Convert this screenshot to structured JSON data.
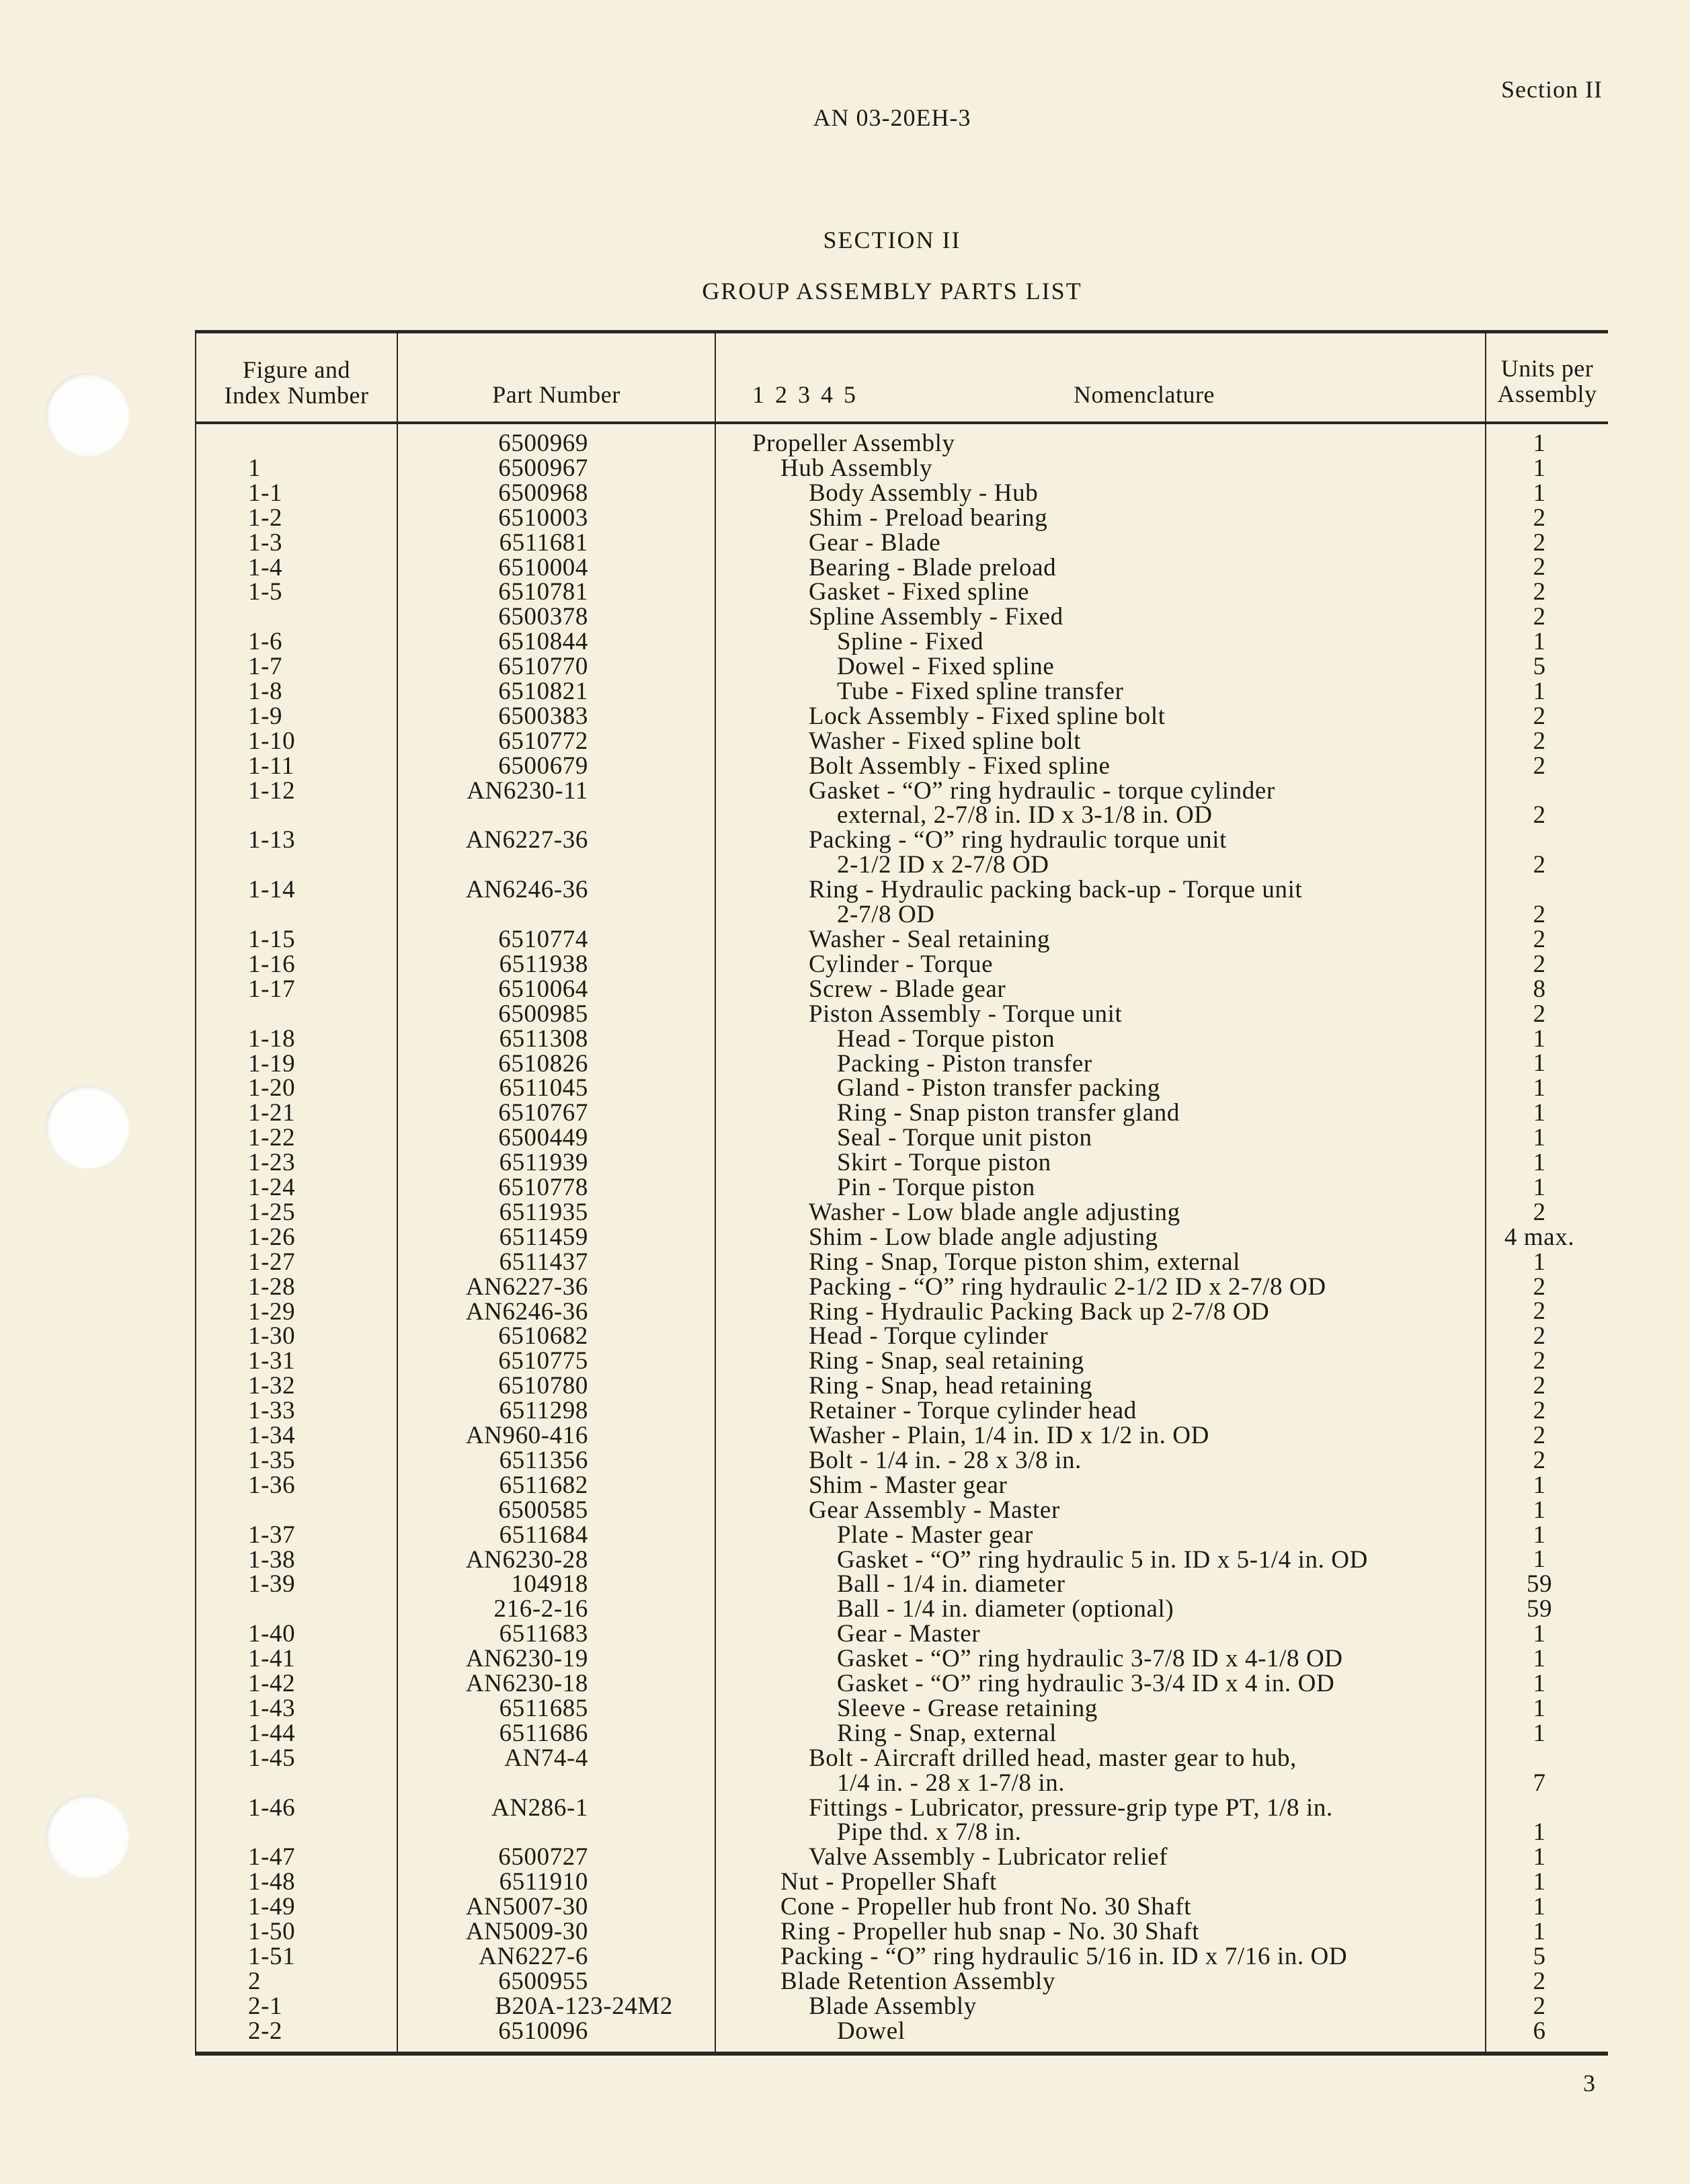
{
  "header": {
    "doc_number": "AN 03-20EH-3",
    "section_tag": "Section II"
  },
  "title": {
    "section": "SECTION II",
    "heading": "GROUP ASSEMBLY PARTS LIST"
  },
  "columns": {
    "figure_line1": "Figure and",
    "figure_line2": "Index Number",
    "part": "Part Number",
    "levels": "1 2 3 4 5",
    "nomenclature": "Nomenclature",
    "units_line1": "Units per",
    "units_line2": "Assembly"
  },
  "rows": [
    {
      "fig": "",
      "part": "6500969",
      "level": 0,
      "desc": [
        "Propeller Assembly"
      ],
      "units": "1"
    },
    {
      "fig": "1",
      "part": "6500967",
      "level": 1,
      "desc": [
        "Hub Assembly"
      ],
      "units": "1"
    },
    {
      "fig": "1-1",
      "part": "6500968",
      "level": 2,
      "desc": [
        "Body Assembly - Hub"
      ],
      "units": "1"
    },
    {
      "fig": "1-2",
      "part": "6510003",
      "level": 2,
      "desc": [
        "Shim - Preload bearing"
      ],
      "units": "2"
    },
    {
      "fig": "1-3",
      "part": "6511681",
      "level": 2,
      "desc": [
        "Gear - Blade"
      ],
      "units": "2"
    },
    {
      "fig": "1-4",
      "part": "6510004",
      "level": 2,
      "desc": [
        "Bearing - Blade preload"
      ],
      "units": "2"
    },
    {
      "fig": "1-5",
      "part": "6510781",
      "level": 2,
      "desc": [
        "Gasket - Fixed spline"
      ],
      "units": "2"
    },
    {
      "fig": "",
      "part": "6500378",
      "level": 2,
      "desc": [
        "Spline Assembly - Fixed"
      ],
      "units": "2"
    },
    {
      "fig": "1-6",
      "part": "6510844",
      "level": 3,
      "desc": [
        "Spline - Fixed"
      ],
      "units": "1"
    },
    {
      "fig": "1-7",
      "part": "6510770",
      "level": 3,
      "desc": [
        "Dowel - Fixed spline"
      ],
      "units": "5"
    },
    {
      "fig": "1-8",
      "part": "6510821",
      "level": 3,
      "desc": [
        "Tube - Fixed spline transfer"
      ],
      "units": "1"
    },
    {
      "fig": "1-9",
      "part": "6500383",
      "level": 2,
      "desc": [
        "Lock Assembly - Fixed spline bolt"
      ],
      "units": "2"
    },
    {
      "fig": "1-10",
      "part": "6510772",
      "level": 2,
      "desc": [
        "Washer - Fixed spline bolt"
      ],
      "units": "2"
    },
    {
      "fig": "1-11",
      "part": "6500679",
      "level": 2,
      "desc": [
        "Bolt Assembly - Fixed spline"
      ],
      "units": "2"
    },
    {
      "fig": "1-12",
      "part": "AN6230-11",
      "level": 2,
      "desc": [
        "Gasket - “O” ring hydraulic - torque cylinder",
        "external, 2-7/8 in. ID x 3-1/8 in. OD"
      ],
      "units": "2"
    },
    {
      "fig": "1-13",
      "part": "AN6227-36",
      "level": 2,
      "desc": [
        "Packing - “O” ring hydraulic torque unit",
        "2-1/2 ID x 2-7/8 OD"
      ],
      "units": "2"
    },
    {
      "fig": "1-14",
      "part": "AN6246-36",
      "level": 2,
      "desc": [
        "Ring - Hydraulic packing back-up - Torque unit",
        "2-7/8 OD"
      ],
      "units": "2"
    },
    {
      "fig": "1-15",
      "part": "6510774",
      "level": 2,
      "desc": [
        "Washer - Seal retaining"
      ],
      "units": "2"
    },
    {
      "fig": "1-16",
      "part": "6511938",
      "level": 2,
      "desc": [
        "Cylinder - Torque"
      ],
      "units": "2"
    },
    {
      "fig": "1-17",
      "part": "6510064",
      "level": 2,
      "desc": [
        "Screw - Blade gear"
      ],
      "units": "8"
    },
    {
      "fig": "",
      "part": "6500985",
      "level": 2,
      "desc": [
        "Piston Assembly - Torque unit"
      ],
      "units": "2"
    },
    {
      "fig": "1-18",
      "part": "6511308",
      "level": 3,
      "desc": [
        "Head - Torque piston"
      ],
      "units": "1"
    },
    {
      "fig": "1-19",
      "part": "6510826",
      "level": 3,
      "desc": [
        "Packing - Piston transfer"
      ],
      "units": "1"
    },
    {
      "fig": "1-20",
      "part": "6511045",
      "level": 3,
      "desc": [
        "Gland - Piston transfer packing"
      ],
      "units": "1"
    },
    {
      "fig": "1-21",
      "part": "6510767",
      "level": 3,
      "desc": [
        "Ring - Snap piston transfer gland"
      ],
      "units": "1"
    },
    {
      "fig": "1-22",
      "part": "6500449",
      "level": 3,
      "desc": [
        "Seal - Torque unit piston"
      ],
      "units": "1"
    },
    {
      "fig": "1-23",
      "part": "6511939",
      "level": 3,
      "desc": [
        "Skirt - Torque piston"
      ],
      "units": "1"
    },
    {
      "fig": "1-24",
      "part": "6510778",
      "level": 3,
      "desc": [
        "Pin - Torque piston"
      ],
      "units": "1"
    },
    {
      "fig": "1-25",
      "part": "6511935",
      "level": 2,
      "desc": [
        "Washer - Low blade angle adjusting"
      ],
      "units": "2"
    },
    {
      "fig": "1-26",
      "part": "6511459",
      "level": 2,
      "desc": [
        "Shim - Low blade angle adjusting"
      ],
      "units": "4 max."
    },
    {
      "fig": "1-27",
      "part": "6511437",
      "level": 2,
      "desc": [
        "Ring - Snap, Torque piston shim, external"
      ],
      "units": "1"
    },
    {
      "fig": "1-28",
      "part": "AN6227-36",
      "level": 2,
      "desc": [
        "Packing - “O” ring hydraulic 2-1/2 ID x 2-7/8 OD"
      ],
      "units": "2"
    },
    {
      "fig": "1-29",
      "part": "AN6246-36",
      "level": 2,
      "desc": [
        "Ring - Hydraulic Packing Back up 2-7/8 OD"
      ],
      "units": "2"
    },
    {
      "fig": "1-30",
      "part": "6510682",
      "level": 2,
      "desc": [
        "Head - Torque cylinder"
      ],
      "units": "2"
    },
    {
      "fig": "1-31",
      "part": "6510775",
      "level": 2,
      "desc": [
        "Ring - Snap, seal retaining"
      ],
      "units": "2"
    },
    {
      "fig": "1-32",
      "part": "6510780",
      "level": 2,
      "desc": [
        "Ring - Snap, head retaining"
      ],
      "units": "2"
    },
    {
      "fig": "1-33",
      "part": "6511298",
      "level": 2,
      "desc": [
        "Retainer - Torque cylinder head"
      ],
      "units": "2"
    },
    {
      "fig": "1-34",
      "part": "AN960-416",
      "level": 2,
      "desc": [
        "Washer - Plain, 1/4 in. ID x 1/2 in. OD"
      ],
      "units": "2"
    },
    {
      "fig": "1-35",
      "part": "6511356",
      "level": 2,
      "desc": [
        "Bolt - 1/4 in. - 28 x 3/8 in."
      ],
      "units": "2"
    },
    {
      "fig": "1-36",
      "part": "6511682",
      "level": 2,
      "desc": [
        "Shim - Master gear"
      ],
      "units": "1"
    },
    {
      "fig": "",
      "part": "6500585",
      "level": 2,
      "desc": [
        "Gear Assembly - Master"
      ],
      "units": "1"
    },
    {
      "fig": "1-37",
      "part": "6511684",
      "level": 3,
      "desc": [
        "Plate - Master gear"
      ],
      "units": "1"
    },
    {
      "fig": "1-38",
      "part": "AN6230-28",
      "level": 3,
      "desc": [
        "Gasket - “O” ring hydraulic 5 in. ID x 5-1/4 in. OD"
      ],
      "units": "1"
    },
    {
      "fig": "1-39",
      "part": "104918",
      "level": 3,
      "desc": [
        "Ball - 1/4 in. diameter"
      ],
      "units": "59"
    },
    {
      "fig": "",
      "part": "216-2-16",
      "level": 3,
      "desc": [
        "Ball - 1/4 in. diameter (optional)"
      ],
      "units": "59"
    },
    {
      "fig": "1-40",
      "part": "6511683",
      "level": 3,
      "desc": [
        "Gear - Master"
      ],
      "units": "1"
    },
    {
      "fig": "1-41",
      "part": "AN6230-19",
      "level": 3,
      "desc": [
        "Gasket - “O” ring hydraulic 3-7/8 ID x 4-1/8 OD"
      ],
      "units": "1"
    },
    {
      "fig": "1-42",
      "part": "AN6230-18",
      "level": 3,
      "desc": [
        "Gasket - “O” ring hydraulic 3-3/4 ID x 4 in. OD"
      ],
      "units": "1"
    },
    {
      "fig": "1-43",
      "part": "6511685",
      "level": 3,
      "desc": [
        "Sleeve - Grease retaining"
      ],
      "units": "1"
    },
    {
      "fig": "1-44",
      "part": "6511686",
      "level": 3,
      "desc": [
        "Ring - Snap, external"
      ],
      "units": "1"
    },
    {
      "fig": "1-45",
      "part": "AN74-4",
      "level": 2,
      "desc": [
        "Bolt - Aircraft drilled head, master gear to hub,",
        "1/4 in. - 28 x 1-7/8 in."
      ],
      "units": "7"
    },
    {
      "fig": "1-46",
      "part": "AN286-1",
      "level": 2,
      "desc": [
        "Fittings - Lubricator, pressure-grip type PT, 1/8 in.",
        "Pipe thd. x 7/8 in."
      ],
      "units": "1"
    },
    {
      "fig": "1-47",
      "part": "6500727",
      "level": 2,
      "desc": [
        "Valve Assembly - Lubricator relief"
      ],
      "units": "1"
    },
    {
      "fig": "1-48",
      "part": "6511910",
      "level": 1,
      "desc": [
        "Nut - Propeller Shaft"
      ],
      "units": "1"
    },
    {
      "fig": "1-49",
      "part": "AN5007-30",
      "level": 1,
      "desc": [
        "Cone - Propeller hub front No. 30 Shaft"
      ],
      "units": "1"
    },
    {
      "fig": "1-50",
      "part": "AN5009-30",
      "level": 1,
      "desc": [
        "Ring - Propeller hub snap - No. 30 Shaft"
      ],
      "units": "1"
    },
    {
      "fig": "1-51",
      "part": "AN6227-6",
      "level": 1,
      "desc": [
        "Packing - “O” ring hydraulic 5/16 in. ID x 7/16 in. OD"
      ],
      "units": "5"
    },
    {
      "fig": "2",
      "part": "6500955",
      "level": 1,
      "desc": [
        "Blade Retention Assembly"
      ],
      "units": "2"
    },
    {
      "fig": "2-1",
      "part": "B20A-123-24M2",
      "level": 2,
      "desc": [
        "Blade Assembly"
      ],
      "units": "2"
    },
    {
      "fig": "2-2",
      "part": "6510096",
      "level": 3,
      "desc": [
        "Dowel"
      ],
      "units": "6"
    }
  ],
  "footer": {
    "page_number": "3"
  }
}
